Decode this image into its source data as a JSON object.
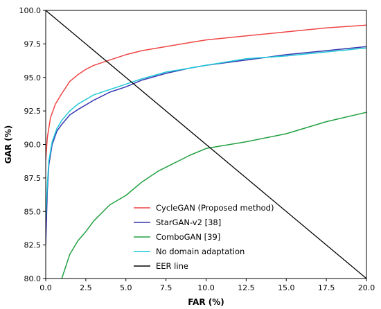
{
  "chart_data": {
    "type": "line",
    "title": "",
    "xlabel": "FAR (%)",
    "ylabel": "GAR (%)",
    "xlim": [
      0,
      20
    ],
    "ylim": [
      80,
      100
    ],
    "xticks": [
      0.0,
      2.5,
      5.0,
      7.5,
      10.0,
      12.5,
      15.0,
      17.5,
      20.0
    ],
    "xtick_labels": [
      "0.0",
      "2.5",
      "5.0",
      "7.5",
      "10.0",
      "12.5",
      "15.0",
      "17.5",
      "20.0"
    ],
    "yticks": [
      80.0,
      82.5,
      85.0,
      87.5,
      90.0,
      92.5,
      95.0,
      97.5,
      100.0
    ],
    "ytick_labels": [
      "80.0",
      "82.5",
      "85.0",
      "87.5",
      "90.0",
      "92.5",
      "95.0",
      "97.5",
      "100.0"
    ],
    "grid": false,
    "legend_position": "lower-center",
    "series": [
      {
        "name": "CycleGAN (Proposed method)",
        "color": "#ef4444",
        "points": [
          [
            0,
            88.8
          ],
          [
            0.1,
            90.5
          ],
          [
            0.3,
            92.0
          ],
          [
            0.6,
            93.0
          ],
          [
            1.0,
            93.8
          ],
          [
            1.5,
            94.7
          ],
          [
            2.0,
            95.2
          ],
          [
            2.5,
            95.6
          ],
          [
            3.0,
            95.9
          ],
          [
            4.0,
            96.3
          ],
          [
            5.0,
            96.7
          ],
          [
            6.0,
            97.0
          ],
          [
            7.5,
            97.3
          ],
          [
            9.0,
            97.6
          ],
          [
            10.0,
            97.8
          ],
          [
            12.5,
            98.1
          ],
          [
            15.0,
            98.4
          ],
          [
            17.5,
            98.7
          ],
          [
            20.0,
            98.9
          ]
        ]
      },
      {
        "name": "StarGAN-v2 [38]",
        "color": "#3535b0",
        "points": [
          [
            0,
            82.5
          ],
          [
            0.1,
            86.5
          ],
          [
            0.2,
            88.5
          ],
          [
            0.4,
            90.0
          ],
          [
            0.7,
            91.0
          ],
          [
            1.0,
            91.5
          ],
          [
            1.5,
            92.2
          ],
          [
            2.0,
            92.6
          ],
          [
            3.0,
            93.3
          ],
          [
            4.0,
            93.9
          ],
          [
            5.0,
            94.3
          ],
          [
            6.0,
            94.8
          ],
          [
            7.5,
            95.3
          ],
          [
            9.0,
            95.7
          ],
          [
            10.0,
            95.9
          ],
          [
            12.5,
            96.3
          ],
          [
            15.0,
            96.7
          ],
          [
            17.5,
            97.0
          ],
          [
            20.0,
            97.3
          ]
        ]
      },
      {
        "name": "ComboGAN [39]",
        "color": "#20a040",
        "points": [
          [
            1.0,
            80.0
          ],
          [
            1.5,
            81.8
          ],
          [
            2.0,
            82.8
          ],
          [
            2.5,
            83.5
          ],
          [
            3.0,
            84.3
          ],
          [
            4.0,
            85.5
          ],
          [
            5.0,
            86.2
          ],
          [
            6.0,
            87.2
          ],
          [
            7.0,
            88.0
          ],
          [
            8.0,
            88.6
          ],
          [
            9.0,
            89.2
          ],
          [
            10.0,
            89.7
          ],
          [
            11.0,
            89.9
          ],
          [
            12.5,
            90.2
          ],
          [
            15.0,
            90.8
          ],
          [
            17.5,
            91.7
          ],
          [
            20.0,
            92.4
          ]
        ]
      },
      {
        "name": "No domain adaptation",
        "color": "#1ec8d8",
        "points": [
          [
            0,
            84.5
          ],
          [
            0.1,
            87.0
          ],
          [
            0.2,
            88.8
          ],
          [
            0.4,
            90.2
          ],
          [
            0.7,
            91.2
          ],
          [
            1.0,
            91.8
          ],
          [
            1.5,
            92.5
          ],
          [
            2.0,
            93.0
          ],
          [
            3.0,
            93.7
          ],
          [
            4.0,
            94.1
          ],
          [
            5.0,
            94.5
          ],
          [
            6.0,
            94.9
          ],
          [
            7.5,
            95.4
          ],
          [
            9.0,
            95.7
          ],
          [
            10.0,
            95.9
          ],
          [
            12.5,
            96.4
          ],
          [
            15.0,
            96.6
          ],
          [
            17.5,
            96.9
          ],
          [
            20.0,
            97.2
          ]
        ]
      },
      {
        "name": "EER line",
        "color": "#000000",
        "points": [
          [
            0,
            100.0
          ],
          [
            20.0,
            80.0
          ]
        ]
      }
    ]
  }
}
